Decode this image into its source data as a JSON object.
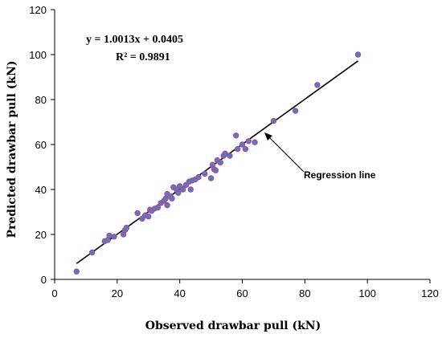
{
  "chart_data": {
    "type": "scatter",
    "xlabel": "Observed drawbar pull (kN)",
    "ylabel": "Predicted drawbar pull (kN)",
    "xlim": [
      0,
      120
    ],
    "ylim": [
      0,
      120
    ],
    "xticks": [
      0,
      20,
      40,
      60,
      80,
      100,
      120
    ],
    "yticks": [
      0,
      20,
      40,
      60,
      80,
      100,
      120
    ],
    "grid": false,
    "legend": "none",
    "marker_color": "#4f7ec9",
    "marker_edge_color": "#c04080",
    "line_color": "#000000",
    "equation": "y = 1.0013x + 0.0405",
    "r_squared": "R² = 0.9891",
    "annotation": "Regression line",
    "regression": {
      "slope": 1.0013,
      "intercept": 0.0405,
      "x_range": [
        7,
        97
      ]
    },
    "points": [
      {
        "x": 7,
        "y": 3.5
      },
      {
        "x": 12,
        "y": 12
      },
      {
        "x": 16,
        "y": 17
      },
      {
        "x": 17,
        "y": 17.5
      },
      {
        "x": 17.5,
        "y": 19.5
      },
      {
        "x": 19,
        "y": 19
      },
      {
        "x": 22,
        "y": 20
      },
      {
        "x": 22.5,
        "y": 22
      },
      {
        "x": 23,
        "y": 23
      },
      {
        "x": 26.5,
        "y": 29.5
      },
      {
        "x": 28,
        "y": 27
      },
      {
        "x": 29,
        "y": 28.5
      },
      {
        "x": 30,
        "y": 28
      },
      {
        "x": 30.5,
        "y": 31
      },
      {
        "x": 31,
        "y": 30.5
      },
      {
        "x": 32,
        "y": 31.5
      },
      {
        "x": 33,
        "y": 32
      },
      {
        "x": 34,
        "y": 34
      },
      {
        "x": 35,
        "y": 35
      },
      {
        "x": 35.5,
        "y": 36
      },
      {
        "x": 36,
        "y": 33
      },
      {
        "x": 36,
        "y": 38
      },
      {
        "x": 37,
        "y": 37
      },
      {
        "x": 37.5,
        "y": 36
      },
      {
        "x": 38,
        "y": 41
      },
      {
        "x": 39,
        "y": 40
      },
      {
        "x": 39.5,
        "y": 38.5
      },
      {
        "x": 40,
        "y": 41.5
      },
      {
        "x": 41,
        "y": 40
      },
      {
        "x": 42,
        "y": 42
      },
      {
        "x": 43,
        "y": 43.5
      },
      {
        "x": 43.5,
        "y": 40
      },
      {
        "x": 44,
        "y": 44
      },
      {
        "x": 45,
        "y": 44.5
      },
      {
        "x": 46,
        "y": 45.5
      },
      {
        "x": 48,
        "y": 47
      },
      {
        "x": 50,
        "y": 45
      },
      {
        "x": 50.5,
        "y": 51
      },
      {
        "x": 51,
        "y": 49
      },
      {
        "x": 51.5,
        "y": 48.5
      },
      {
        "x": 52,
        "y": 53
      },
      {
        "x": 53,
        "y": 52
      },
      {
        "x": 54,
        "y": 55
      },
      {
        "x": 54.5,
        "y": 56
      },
      {
        "x": 56,
        "y": 55
      },
      {
        "x": 58,
        "y": 64
      },
      {
        "x": 58.5,
        "y": 58
      },
      {
        "x": 60,
        "y": 60
      },
      {
        "x": 61,
        "y": 58
      },
      {
        "x": 62,
        "y": 61.5
      },
      {
        "x": 64,
        "y": 61
      },
      {
        "x": 70,
        "y": 70.5
      },
      {
        "x": 77,
        "y": 75
      },
      {
        "x": 84,
        "y": 86.5
      },
      {
        "x": 97,
        "y": 100
      }
    ]
  }
}
